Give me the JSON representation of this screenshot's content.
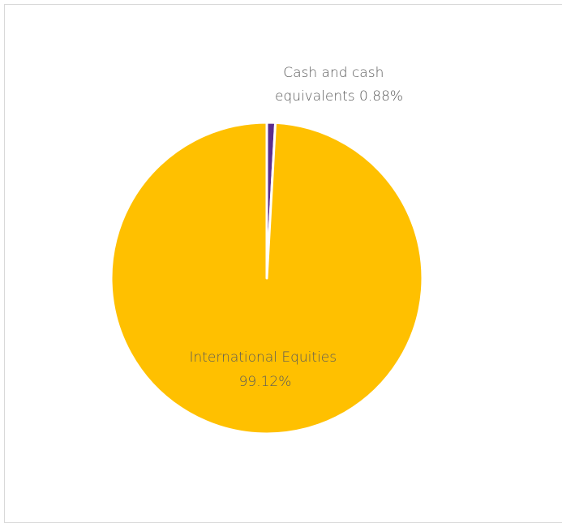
{
  "chart_data": {
    "type": "pie",
    "title": "",
    "slices": [
      {
        "name": "Cash and cash equivalents",
        "value": 0.88,
        "color": "#5b2d8e",
        "label_lines": [
          "Cash and cash",
          "equivalents 0.88%"
        ]
      },
      {
        "name": "International Equities",
        "value": 99.12,
        "color": "#ffc000",
        "label_lines": [
          "International Equities",
          "99.12%"
        ]
      }
    ],
    "start_angle_deg": 0,
    "direction": "clockwise",
    "legend": "none",
    "slice_border_color": "#ffffff"
  }
}
